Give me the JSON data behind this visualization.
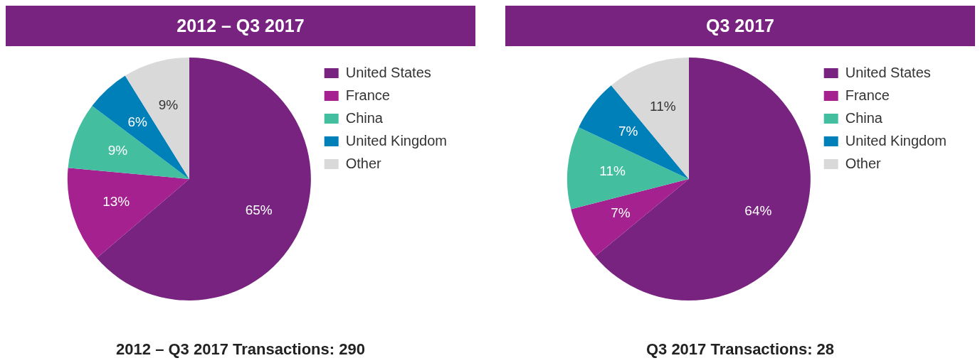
{
  "chart_data": [
    {
      "type": "pie",
      "title": "2012 – Q3 2017",
      "categories": [
        "United States",
        "France",
        "China",
        "United Kingdom",
        "Other"
      ],
      "values": [
        65,
        13,
        9,
        6,
        9
      ],
      "value_labels": [
        "65%",
        "13%",
        "9%",
        "6%",
        "9%"
      ],
      "colors": [
        "#77237f",
        "#a5218f",
        "#43bfa0",
        "#0080b8",
        "#d9d9d9"
      ],
      "legend": "right",
      "annotations": [
        "2012 – Q3 2017 Transactions: 290"
      ]
    },
    {
      "type": "pie",
      "title": "Q3 2017",
      "categories": [
        "United States",
        "France",
        "China",
        "United Kingdom",
        "Other"
      ],
      "values": [
        64,
        7,
        11,
        7,
        11
      ],
      "value_labels": [
        "64%",
        "7%",
        "11%",
        "7%",
        "11%"
      ],
      "colors": [
        "#77237f",
        "#a5218f",
        "#43bfa0",
        "#0080b8",
        "#d9d9d9"
      ],
      "legend": "right",
      "annotations": [
        "Q3 2017 Transactions: 28"
      ]
    }
  ]
}
